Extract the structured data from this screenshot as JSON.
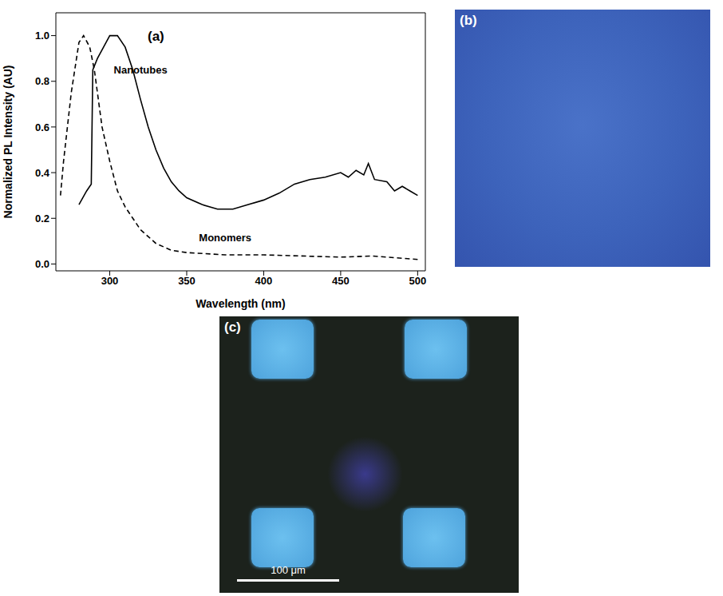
{
  "chart_data": {
    "type": "line",
    "x_label": "Wavelength (nm)",
    "y_label": "Normalized PL Intensity (AU)",
    "xlim": [
      265,
      505
    ],
    "xticks": [
      300,
      350,
      400,
      450,
      500
    ],
    "ylim": [
      -0.03,
      1.1
    ],
    "yticks": [
      {
        "value": 0,
        "label": "0.0"
      },
      {
        "value": 0.2,
        "label": "0.2"
      },
      {
        "value": 0.4,
        "label": "0.4"
      },
      {
        "value": 0.6,
        "label": "0.6"
      },
      {
        "value": 0.8,
        "label": "0.8"
      },
      {
        "value": 1,
        "label": "1.0"
      }
    ],
    "grid": false,
    "series": [
      {
        "name": "Nanotubes",
        "color": "#000000",
        "line_style": "solid",
        "x": [
          280,
          285,
          288,
          289,
          292,
          296,
          300,
          305,
          310,
          315,
          320,
          325,
          330,
          335,
          340,
          345,
          350,
          360,
          370,
          380,
          390,
          400,
          410,
          420,
          430,
          440,
          450,
          455,
          460,
          465,
          468,
          472,
          480,
          485,
          490,
          495,
          500
        ],
        "values": [
          0.26,
          0.32,
          0.35,
          0.85,
          0.9,
          0.95,
          1.0,
          1.0,
          0.95,
          0.85,
          0.72,
          0.6,
          0.5,
          0.42,
          0.36,
          0.32,
          0.29,
          0.26,
          0.24,
          0.24,
          0.26,
          0.28,
          0.31,
          0.35,
          0.37,
          0.38,
          0.4,
          0.38,
          0.41,
          0.39,
          0.44,
          0.37,
          0.36,
          0.32,
          0.34,
          0.32,
          0.3
        ]
      },
      {
        "name": "Monomers",
        "color": "#000000",
        "line_style": "dashed",
        "x": [
          268,
          270,
          275,
          280,
          283,
          287,
          290,
          295,
          300,
          305,
          310,
          315,
          320,
          325,
          330,
          340,
          350,
          375,
          400,
          450,
          470,
          500
        ],
        "values": [
          0.3,
          0.45,
          0.75,
          0.97,
          1.0,
          0.95,
          0.85,
          0.6,
          0.45,
          0.32,
          0.25,
          0.2,
          0.15,
          0.12,
          0.09,
          0.06,
          0.05,
          0.04,
          0.04,
          0.03,
          0.035,
          0.02
        ]
      }
    ],
    "annotations": [
      {
        "text": "(a)",
        "x": 330,
        "y": 1.0
      },
      {
        "text": "Nanotubes",
        "x": 320,
        "y": 0.85
      },
      {
        "text": "Monomers",
        "x": 375,
        "y": 0.115
      }
    ]
  },
  "panels": [
    {
      "label": "(b)"
    },
    {
      "label": "(c)",
      "scale_bar": "100 μm"
    }
  ]
}
